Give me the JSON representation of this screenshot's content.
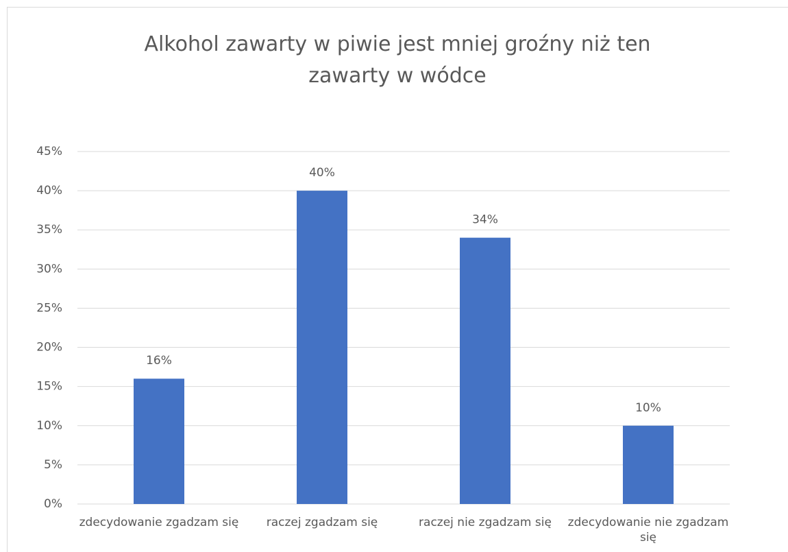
{
  "chart_data": {
    "type": "bar",
    "title": "Alkohol zawarty w piwie jest mniej groźny niż ten zawarty w wódce",
    "categories": [
      "zdecydowanie zgadzam się",
      "raczej zgadzam się",
      "raczej nie zgadzam się",
      "zdecydowanie nie zgadzam się"
    ],
    "values": [
      16,
      40,
      34,
      10
    ],
    "value_labels": [
      "16%",
      "40%",
      "34%",
      "10%"
    ],
    "color": "#4472c4",
    "ylim": [
      0,
      45
    ],
    "yticks": [
      {
        "value": 0,
        "label": "0%"
      },
      {
        "value": 5,
        "label": "5%"
      },
      {
        "value": 10,
        "label": "10%"
      },
      {
        "value": 15,
        "label": "15%"
      },
      {
        "value": 20,
        "label": "20%"
      },
      {
        "value": 25,
        "label": "25%"
      },
      {
        "value": 30,
        "label": "30%"
      },
      {
        "value": 35,
        "label": "35%"
      },
      {
        "value": 40,
        "label": "40%"
      },
      {
        "value": 45,
        "label": "45%"
      }
    ],
    "grid": true
  }
}
